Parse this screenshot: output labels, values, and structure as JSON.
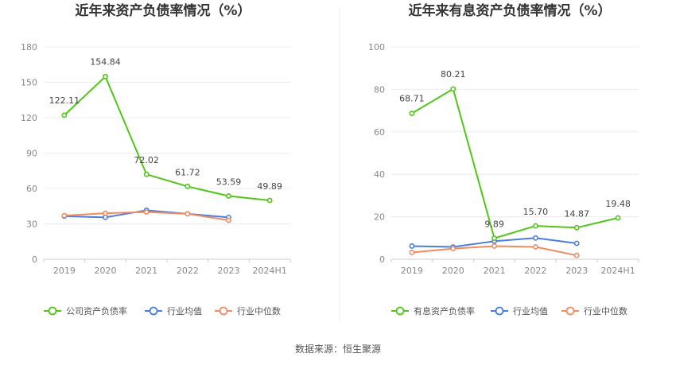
{
  "chart_data": [
    {
      "type": "line",
      "title": "近年来资产负债率情况（%）",
      "categories": [
        "2019",
        "2020",
        "2021",
        "2022",
        "2023",
        "2024H1"
      ],
      "ylim": [
        0,
        180
      ],
      "yticks": [
        0,
        30,
        60,
        90,
        120,
        150,
        180
      ],
      "grid": true,
      "legend_position": "bottom",
      "series": [
        {
          "name": "公司资产负债率",
          "color": "#52c41a",
          "values": [
            122.11,
            154.84,
            72.02,
            61.72,
            53.59,
            49.89
          ],
          "labels": [
            "122.11",
            "154.84",
            "72.02",
            "61.72",
            "53.59",
            "49.89"
          ]
        },
        {
          "name": "行业均值",
          "color": "#4a7fd9",
          "values": [
            36.5,
            35.5,
            41.5,
            38.5,
            35.5,
            null
          ]
        },
        {
          "name": "行业中位数",
          "color": "#f08b62",
          "values": [
            37,
            39,
            40,
            38.5,
            33,
            null
          ]
        }
      ]
    },
    {
      "type": "line",
      "title": "近年来有息资产负债率情况（%）",
      "categories": [
        "2019",
        "2020",
        "2021",
        "2022",
        "2023",
        "2024H1"
      ],
      "ylim": [
        0,
        100
      ],
      "yticks": [
        0,
        20,
        40,
        60,
        80,
        100
      ],
      "grid": true,
      "legend_position": "bottom",
      "series": [
        {
          "name": "有息资产负债率",
          "color": "#52c41a",
          "values": [
            68.71,
            80.21,
            9.89,
            15.7,
            14.87,
            19.48
          ],
          "labels": [
            "68.71",
            "80.21",
            "9.89",
            "15.70",
            "14.87",
            "19.48"
          ]
        },
        {
          "name": "行业均值",
          "color": "#4a7fd9",
          "values": [
            6.2,
            5.8,
            8.5,
            10,
            7.5,
            null
          ]
        },
        {
          "name": "行业中位数",
          "color": "#f08b62",
          "values": [
            3.2,
            5,
            6.2,
            5.8,
            1.8,
            null
          ]
        }
      ]
    }
  ],
  "source_text": "数据来源：恒生聚源"
}
